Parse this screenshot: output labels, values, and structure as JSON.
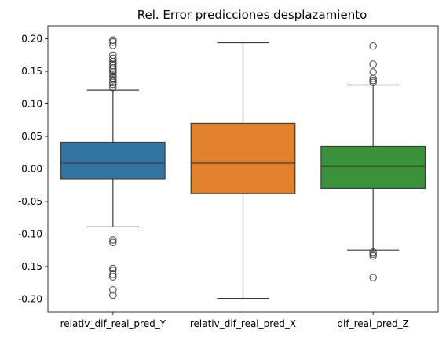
{
  "chart_data": {
    "type": "box",
    "title": "Rel. Error predicciones desplazamiento",
    "xlabel": "",
    "ylabel": "",
    "ylim": [
      -0.22,
      0.22
    ],
    "yticks": [
      -0.2,
      -0.15,
      -0.1,
      -0.05,
      0.0,
      0.05,
      0.1,
      0.15,
      0.2
    ],
    "grid": false,
    "categories": [
      "relativ_dif_real_pred_Y",
      "relativ_dif_real_pred_X",
      "dif_real_pred_Z"
    ],
    "series": [
      {
        "color": "#3274a1",
        "q1": -0.015,
        "median": 0.009,
        "q3": 0.041,
        "whisker_low": -0.089,
        "whisker_high": 0.121,
        "outliers": [
          0.125,
          0.13,
          0.133,
          0.137,
          0.14,
          0.143,
          0.146,
          0.149,
          0.152,
          0.155,
          0.159,
          0.162,
          0.165,
          0.17,
          0.175,
          0.19,
          0.195,
          0.198,
          -0.109,
          -0.113,
          -0.153,
          -0.156,
          -0.162,
          -0.166,
          -0.186,
          -0.194
        ]
      },
      {
        "color": "#e1812c",
        "q1": -0.038,
        "median": 0.009,
        "q3": 0.07,
        "whisker_low": -0.199,
        "whisker_high": 0.194,
        "outliers": []
      },
      {
        "color": "#3a923a",
        "q1": -0.03,
        "median": 0.004,
        "q3": 0.035,
        "whisker_low": -0.125,
        "whisker_high": 0.129,
        "outliers": [
          0.133,
          0.136,
          0.139,
          0.149,
          0.161,
          0.189,
          -0.128,
          -0.131,
          -0.134,
          -0.167
        ]
      }
    ]
  }
}
